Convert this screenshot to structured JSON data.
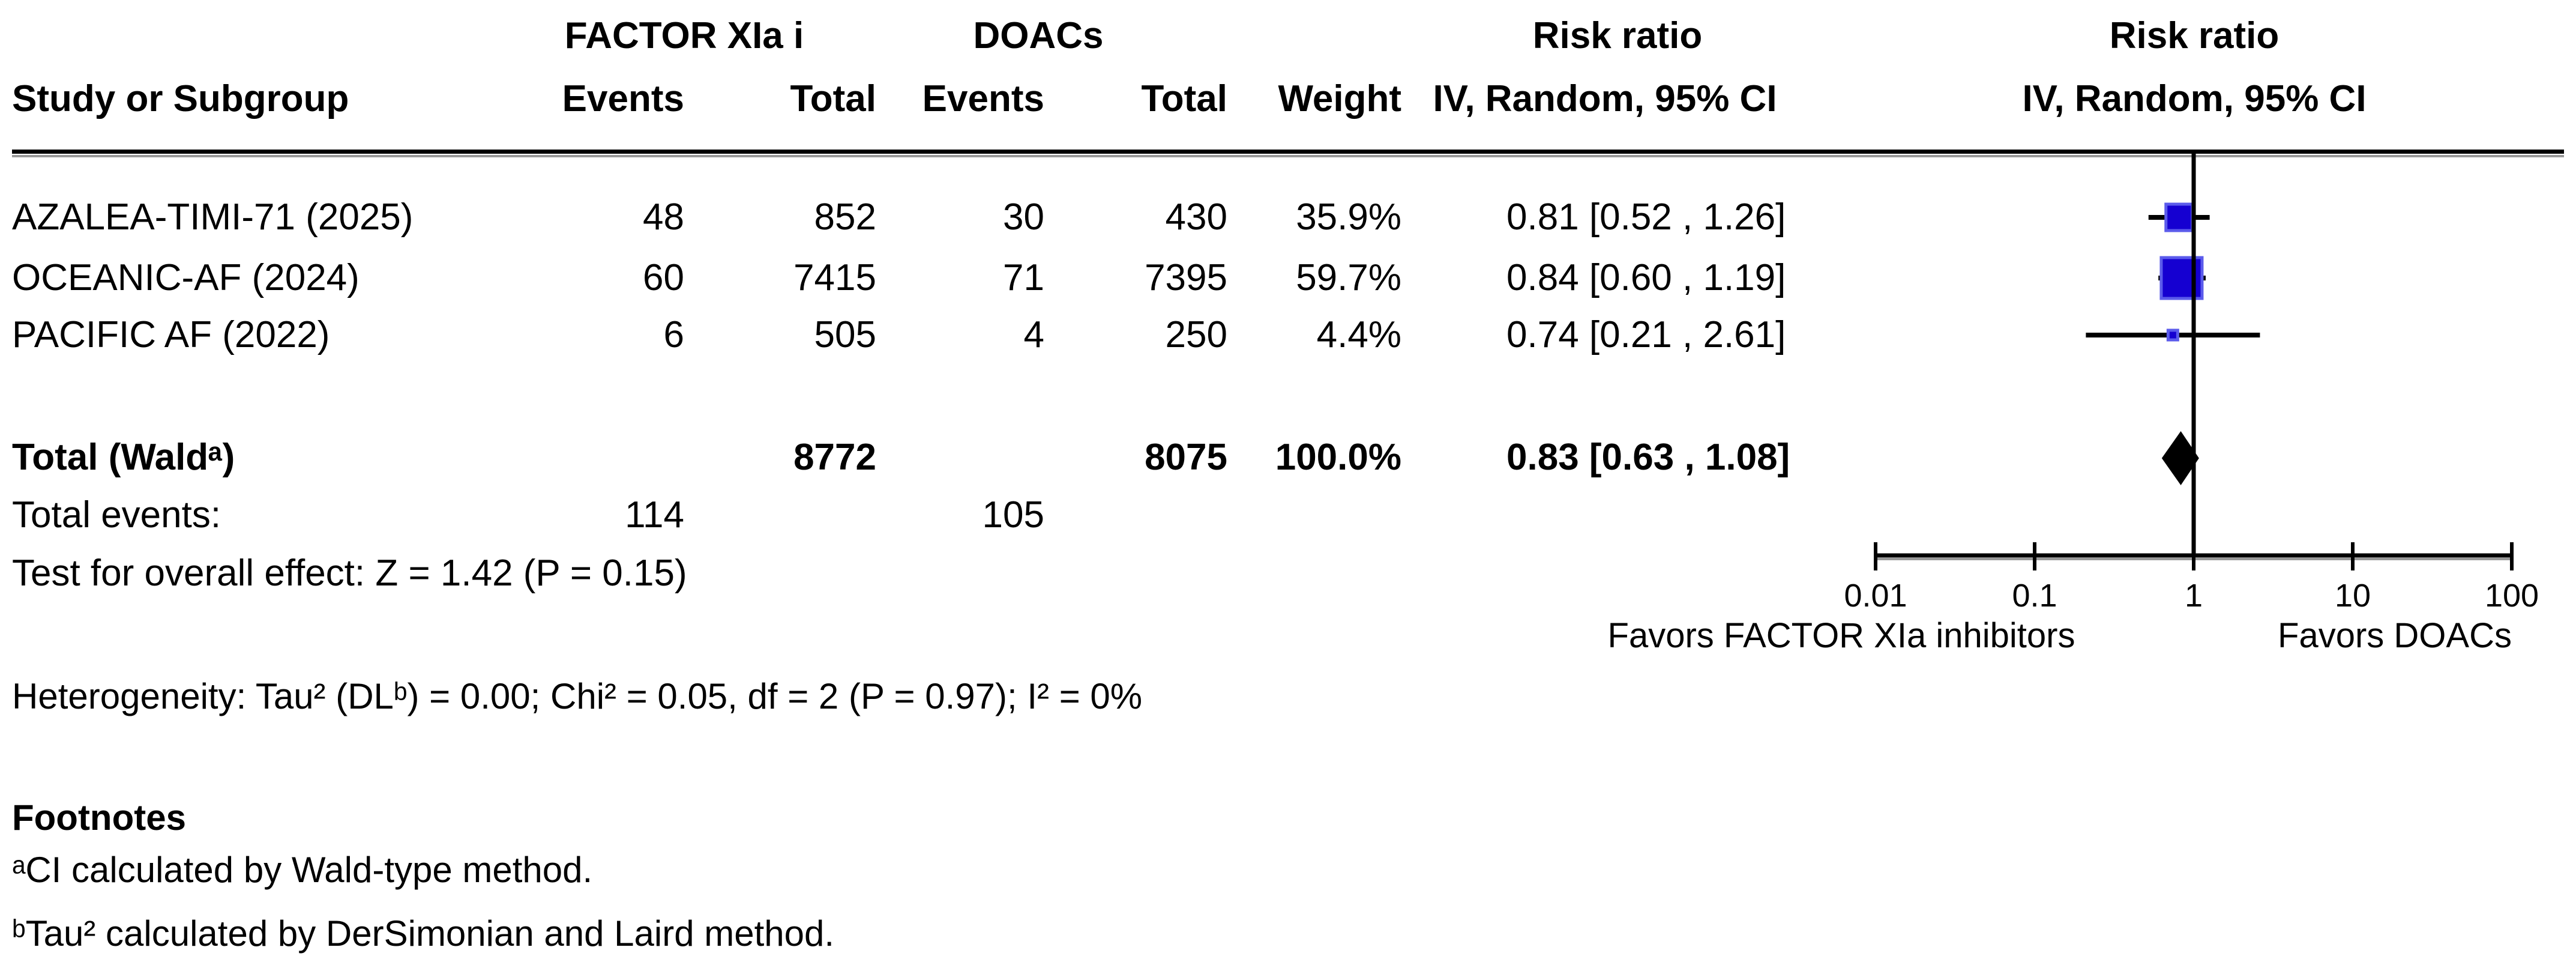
{
  "title_row": {
    "group1": "FACTOR XIa i",
    "group2": "DOACs",
    "risk_ratio_left": "Risk ratio",
    "risk_ratio_right": "Risk ratio"
  },
  "columns": {
    "study": "Study or Subgroup",
    "events1": "Events",
    "total1": "Total",
    "events2": "Events",
    "total2": "Total",
    "weight": "Weight",
    "ci_left": "IV, Random, 95% CI",
    "ci_right": "IV, Random, 95% CI"
  },
  "rows": [
    {
      "name": "AZALEA-TIMI-71 (2025)",
      "e1": "48",
      "t1": "852",
      "e2": "30",
      "t2": "430",
      "weight": "35.9%",
      "ci_text": "0.81 [0.52 , 1.26]"
    },
    {
      "name": "OCEANIC-AF (2024)",
      "e1": "60",
      "t1": "7415",
      "e2": "71",
      "t2": "7395",
      "weight": "59.7%",
      "ci_text": "0.84 [0.60 , 1.19]"
    },
    {
      "name": "PACIFIC AF (2022)",
      "e1": "6",
      "t1": "505",
      "e2": "4",
      "t2": "250",
      "weight": "4.4%",
      "ci_text": "0.74 [0.21 , 2.61]"
    }
  ],
  "total_row": {
    "label": "Total (Waldᵃ)",
    "total1": "8772",
    "total2": "8075",
    "weight": "100.0%",
    "ci_text": "0.83 [0.63 , 1.08]"
  },
  "total_events": {
    "label": "Total events:",
    "e1": "114",
    "e2": "105"
  },
  "overall_effect": "Test for overall effect: Z = 1.42 (P = 0.15)",
  "heterogeneity": "Heterogeneity: Tau² (DLᵇ) = 0.00; Chi² = 0.05, df = 2 (P = 0.97); I² = 0%",
  "footnotes": {
    "title": "Footnotes",
    "a": "ᵃCI calculated by Wald-type method.",
    "b": "ᵇTau² calculated by DerSimonian and Laird method."
  },
  "axis": {
    "tick_labels": [
      "0.01",
      "0.1",
      "1",
      "10",
      "100"
    ],
    "favors_left": "Favors FACTOR XIa inhibitors",
    "favors_right": "Favors DOACs"
  },
  "colors": {
    "marker_fill": "#1500D1",
    "marker_border": "#5B5BEB",
    "line": "#000000",
    "shadow": "#999999",
    "diamond": "#000000"
  },
  "chart_data": {
    "type": "forest",
    "effect_measure": "Risk ratio",
    "model": "IV, Random, 95% CI",
    "x_scale": "log10",
    "x_ticks": [
      0.01,
      0.1,
      1,
      10,
      100
    ],
    "x_range": [
      0.01,
      100
    ],
    "studies": [
      {
        "label": "AZALEA-TIMI-71 (2025)",
        "events_trt": 48,
        "total_trt": 852,
        "events_ctrl": 30,
        "total_ctrl": 430,
        "weight_pct": 35.9,
        "rr": 0.81,
        "ci_low": 0.52,
        "ci_high": 1.26,
        "marker_px": 44
      },
      {
        "label": "OCEANIC-AF (2024)",
        "events_trt": 60,
        "total_trt": 7415,
        "events_ctrl": 71,
        "total_ctrl": 7395,
        "weight_pct": 59.7,
        "rr": 0.84,
        "ci_low": 0.6,
        "ci_high": 1.19,
        "marker_px": 68
      },
      {
        "label": "PACIFIC AF (2022)",
        "events_trt": 6,
        "total_trt": 505,
        "events_ctrl": 4,
        "total_ctrl": 250,
        "weight_pct": 4.4,
        "rr": 0.74,
        "ci_low": 0.21,
        "ci_high": 2.61,
        "marker_px": 16
      }
    ],
    "total": {
      "rr": 0.83,
      "ci_low": 0.63,
      "ci_high": 1.08,
      "total_trt": 8772,
      "total_ctrl": 8075,
      "weight_pct": 100.0,
      "events_trt": 114,
      "events_ctrl": 105
    },
    "tests": {
      "z": 1.42,
      "p": "0.15",
      "tau2": 0.0,
      "chi2": 0.05,
      "df": 2,
      "het_p": "0.97",
      "i2_pct": 0
    }
  }
}
